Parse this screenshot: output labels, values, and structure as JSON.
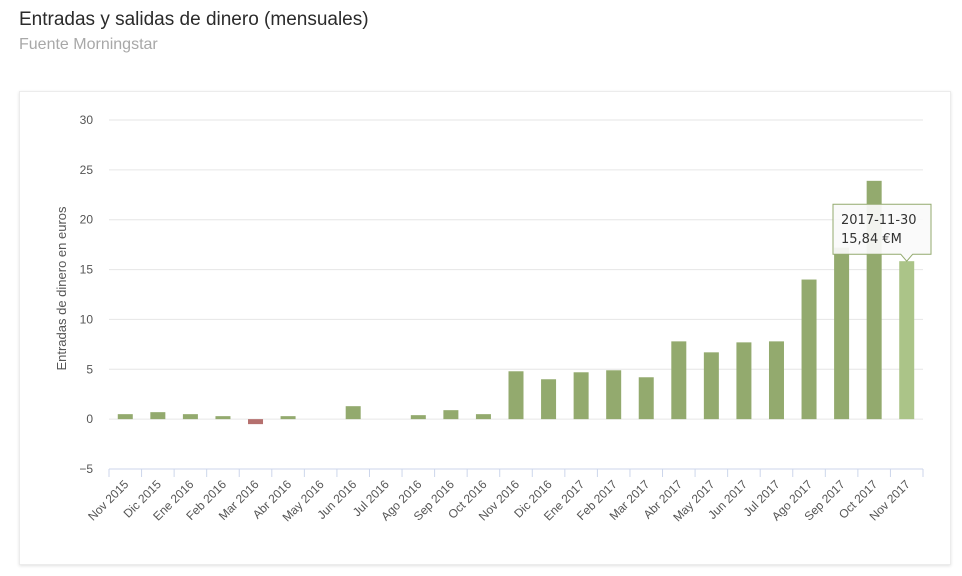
{
  "header": {
    "title": "Entradas y salidas de dinero (mensuales)",
    "subtitle": "Fuente Morningstar"
  },
  "colors": {
    "positive": "#93aa6e",
    "negative": "#b5706e",
    "highlight": "#abc488",
    "grid": "#e6e6e6",
    "tooltip_border": "#93aa6e"
  },
  "chart_data": {
    "type": "bar",
    "ylabel": "Entradas de dinero en euros",
    "ylim": [
      -5,
      30
    ],
    "yticks": [
      -5,
      0,
      5,
      10,
      15,
      20,
      25,
      30
    ],
    "grid": true,
    "categories": [
      "Nov 2015",
      "Dic 2015",
      "Ene 2016",
      "Feb 2016",
      "Mar 2016",
      "Abr 2016",
      "May 2016",
      "Jun 2016",
      "Jul 2016",
      "Ago 2016",
      "Sep 2016",
      "Oct 2016",
      "Nov 2016",
      "Dic 2016",
      "Ene 2017",
      "Feb 2017",
      "Mar 2017",
      "Abr 2017",
      "May 2017",
      "Jun 2017",
      "Jul 2017",
      "Ago 2017",
      "Sep 2017",
      "Oct 2017",
      "Nov 2017"
    ],
    "values": [
      0.5,
      0.7,
      0.5,
      0.3,
      -0.5,
      0.3,
      0,
      1.3,
      0,
      0.4,
      0.9,
      0.5,
      4.8,
      4.0,
      4.7,
      4.9,
      4.2,
      7.8,
      6.7,
      7.7,
      7.8,
      14.0,
      17.2,
      23.9,
      15.84
    ],
    "tooltip": {
      "index": 24,
      "date": "2017-11-30",
      "value": "15,84 €M"
    }
  }
}
